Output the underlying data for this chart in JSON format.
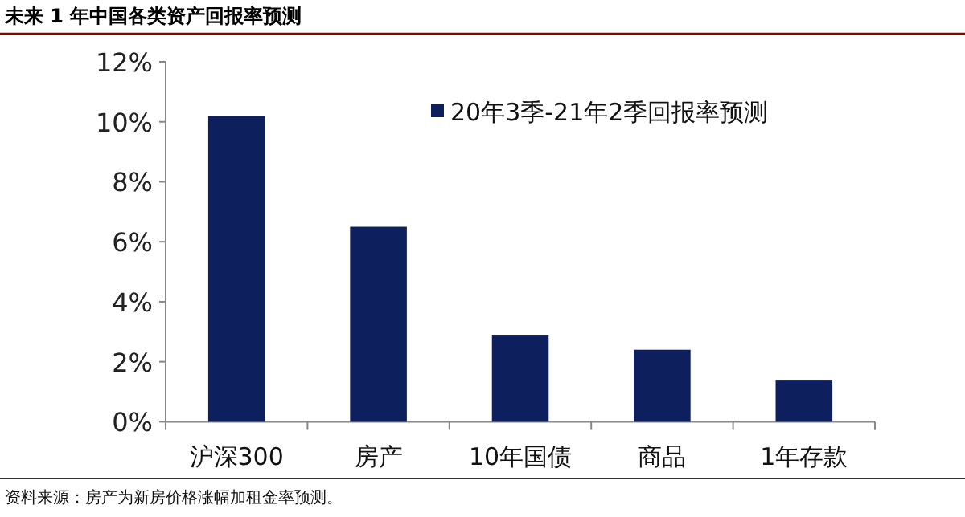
{
  "chart_data": {
    "type": "bar",
    "title": "未来 1 年中国各类资产回报率预测",
    "categories": [
      "沪深300",
      "房产",
      "10年国债",
      "商品",
      "1年存款"
    ],
    "series": [
      {
        "name": "20年3季-21年2季回报率预测",
        "color": "#0d1f5c",
        "values": [
          10.2,
          6.5,
          2.9,
          2.4,
          1.4
        ]
      }
    ],
    "ylim": [
      0,
      12
    ],
    "yticks": [
      {
        "value": 0,
        "label": "0%"
      },
      {
        "value": 2,
        "label": "2%"
      },
      {
        "value": 4,
        "label": "4%"
      },
      {
        "value": 6,
        "label": "6%"
      },
      {
        "value": 8,
        "label": "8%"
      },
      {
        "value": 10,
        "label": "10%"
      },
      {
        "value": 12,
        "label": "12%"
      }
    ],
    "legend": "top right",
    "annotations": [
      "资料来源：房产为新房价格涨幅加租金率预测。"
    ]
  }
}
